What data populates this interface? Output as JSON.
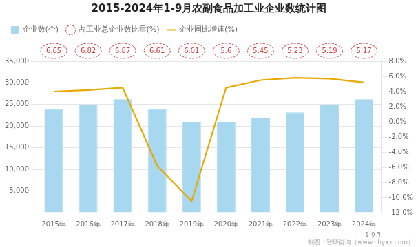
{
  "chart_data": {
    "type": "bar",
    "title": "2015-2024年1-9月农副食品加工业企业数统计图",
    "categories": [
      "2015年",
      "2016年",
      "2017年",
      "2018年",
      "2019年",
      "2020年",
      "2021年",
      "2022年",
      "2023年",
      "2024年"
    ],
    "series": [
      {
        "name": "企业数(个)",
        "type": "bar",
        "color": "#a8d8f0",
        "values": [
          24000,
          25000,
          26200,
          24000,
          21000,
          21000,
          22000,
          23200,
          25000,
          26200
        ]
      },
      {
        "name": "占工业总企业数比重(%)",
        "type": "text",
        "color": "#d04040",
        "marker": "circle",
        "data_labels": true,
        "values": [
          6.65,
          6.82,
          6.87,
          6.61,
          6.01,
          5.6,
          5.45,
          5.23,
          5.19,
          5.17
        ]
      },
      {
        "name": "企业同比增速(%)",
        "type": "line",
        "color": "#e8a800",
        "marker": "none",
        "axis": "y2",
        "values": [
          4.0,
          4.2,
          4.5,
          -5.8,
          -10.5,
          4.5,
          5.5,
          5.8,
          5.7,
          5.2
        ]
      }
    ],
    "ylim": [
      0,
      35000
    ],
    "yticks": [
      {
        "value": 0,
        "label": ""
      },
      {
        "value": 5000,
        "label": "5,000"
      },
      {
        "value": 10000,
        "label": "10,000"
      },
      {
        "value": 15000,
        "label": "15,000"
      },
      {
        "value": 20000,
        "label": "20,000"
      },
      {
        "value": 25000,
        "label": "25,000"
      },
      {
        "value": 30000,
        "label": "30,000"
      },
      {
        "value": 35000,
        "label": "35,000"
      }
    ],
    "y2lim": [
      -12.0,
      8.0
    ],
    "y2ticks": [
      {
        "value": -12,
        "label": "-12.0%"
      },
      {
        "value": -10,
        "label": "-10.0%"
      },
      {
        "value": -8,
        "label": "-8.0%"
      },
      {
        "value": -6,
        "label": "-6.0%"
      },
      {
        "value": -4,
        "label": "-4.0%"
      },
      {
        "value": -2,
        "label": "-2.0%"
      },
      {
        "value": 0,
        "label": "0.0%"
      },
      {
        "value": 2,
        "label": "2.0%"
      },
      {
        "value": 4,
        "label": "4.0%"
      },
      {
        "value": 6,
        "label": "6.0%"
      },
      {
        "value": 8,
        "label": "8.0%"
      }
    ],
    "grid": true,
    "legend": "top",
    "annotations": [
      "1-9月",
      "制图：智研咨询（www.chyxx.com）"
    ]
  }
}
